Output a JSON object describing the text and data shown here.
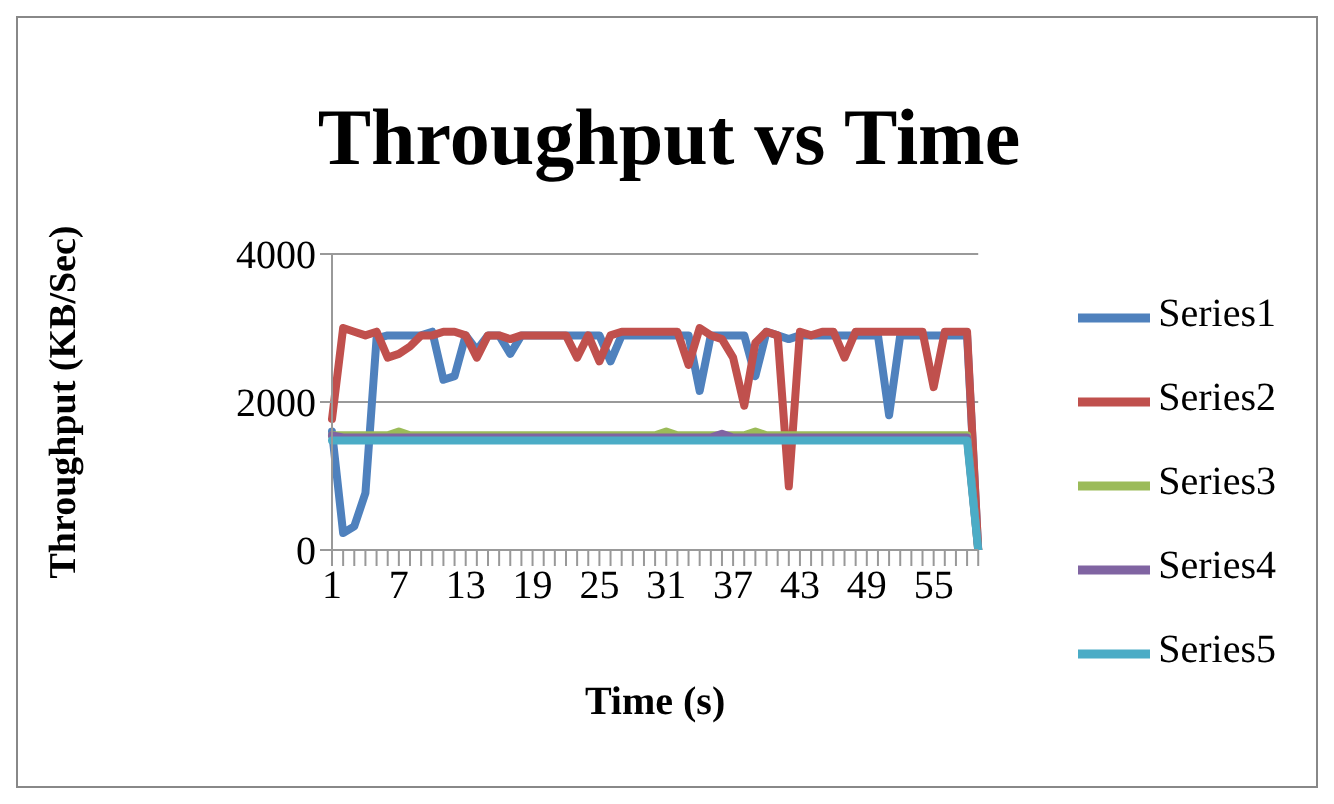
{
  "chart_data": {
    "type": "line",
    "title": "Throughput vs Time",
    "xlabel": "Time (s)",
    "ylabel": "Throughput (KB/Sec)",
    "categories": [
      "1",
      null,
      null,
      null,
      null,
      null,
      "7",
      null,
      null,
      null,
      null,
      null,
      "13",
      null,
      null,
      null,
      null,
      null,
      "19",
      null,
      null,
      null,
      null,
      null,
      "25",
      null,
      null,
      null,
      null,
      null,
      "31",
      null,
      null,
      null,
      null,
      null,
      "37",
      null,
      null,
      null,
      null,
      null,
      "43",
      null,
      null,
      null,
      null,
      null,
      "49",
      null,
      null,
      null,
      null,
      null,
      "55",
      null,
      null,
      null,
      null
    ],
    "series": [
      {
        "name": "Series1",
        "color": "#4f81bd",
        "values": [
          1600,
          230,
          320,
          770,
          2860,
          2900,
          2900,
          2900,
          2900,
          2950,
          2300,
          2350,
          2900,
          2700,
          2900,
          2900,
          2650,
          2900,
          2900,
          2900,
          2900,
          2900,
          2900,
          2900,
          2900,
          2550,
          2900,
          2900,
          2900,
          2900,
          2900,
          2900,
          2900,
          2150,
          2900,
          2900,
          2900,
          2900,
          2350,
          2950,
          2900,
          2850,
          2900,
          2900,
          2900,
          2900,
          2900,
          2900,
          2900,
          2900,
          1820,
          2900,
          2900,
          2900,
          2900,
          2900,
          2900,
          2900,
          0
        ]
      },
      {
        "name": "Series2",
        "color": "#c0504d",
        "values": [
          1770,
          3000,
          2950,
          2900,
          2950,
          2600,
          2650,
          2750,
          2900,
          2900,
          2950,
          2950,
          2900,
          2600,
          2900,
          2900,
          2850,
          2900,
          2900,
          2900,
          2900,
          2900,
          2600,
          2900,
          2550,
          2900,
          2950,
          2950,
          2950,
          2950,
          2950,
          2950,
          2500,
          3000,
          2900,
          2850,
          2600,
          1950,
          2800,
          2950,
          2900,
          860,
          2950,
          2900,
          2950,
          2950,
          2600,
          2950,
          2950,
          2950,
          2950,
          2950,
          2950,
          2950,
          2200,
          2950,
          2950,
          2950,
          0
        ]
      },
      {
        "name": "Series3",
        "color": "#9bbb59",
        "values": [
          1550,
          1550,
          1550,
          1550,
          1550,
          1550,
          1600,
          1550,
          1550,
          1550,
          1550,
          1550,
          1550,
          1550,
          1550,
          1550,
          1550,
          1550,
          1550,
          1550,
          1550,
          1550,
          1550,
          1550,
          1550,
          1550,
          1550,
          1550,
          1550,
          1550,
          1600,
          1550,
          1550,
          1550,
          1550,
          1550,
          1550,
          1550,
          1600,
          1550,
          1550,
          1550,
          1550,
          1550,
          1550,
          1550,
          1550,
          1550,
          1550,
          1550,
          1550,
          1550,
          1550,
          1550,
          1550,
          1550,
          1550,
          1550,
          0
        ]
      },
      {
        "name": "Series4",
        "color": "#8064a2",
        "values": [
          1550,
          1520,
          1520,
          1520,
          1520,
          1520,
          1520,
          1520,
          1520,
          1520,
          1520,
          1520,
          1520,
          1520,
          1520,
          1520,
          1520,
          1520,
          1520,
          1520,
          1520,
          1520,
          1520,
          1520,
          1520,
          1520,
          1520,
          1520,
          1520,
          1520,
          1520,
          1520,
          1520,
          1520,
          1520,
          1570,
          1520,
          1520,
          1520,
          1520,
          1520,
          1520,
          1520,
          1520,
          1520,
          1520,
          1520,
          1520,
          1520,
          1520,
          1520,
          1520,
          1520,
          1520,
          1520,
          1520,
          1520,
          1520,
          0
        ]
      },
      {
        "name": "Series5",
        "color": "#4bacc6",
        "values": [
          1480,
          1480,
          1480,
          1480,
          1480,
          1480,
          1480,
          1480,
          1480,
          1480,
          1480,
          1480,
          1480,
          1480,
          1480,
          1480,
          1480,
          1480,
          1480,
          1480,
          1480,
          1480,
          1480,
          1480,
          1480,
          1480,
          1480,
          1480,
          1480,
          1480,
          1480,
          1480,
          1480,
          1480,
          1480,
          1480,
          1480,
          1480,
          1480,
          1480,
          1480,
          1480,
          1480,
          1480,
          1480,
          1480,
          1480,
          1480,
          1480,
          1480,
          1480,
          1480,
          1480,
          1480,
          1480,
          1480,
          1480,
          1480,
          0
        ]
      }
    ],
    "ylim": [
      0,
      4000
    ],
    "yticks": [
      0,
      2000,
      4000
    ],
    "grid": "y",
    "legend": "right",
    "marker": "none",
    "line_style": "solid"
  }
}
